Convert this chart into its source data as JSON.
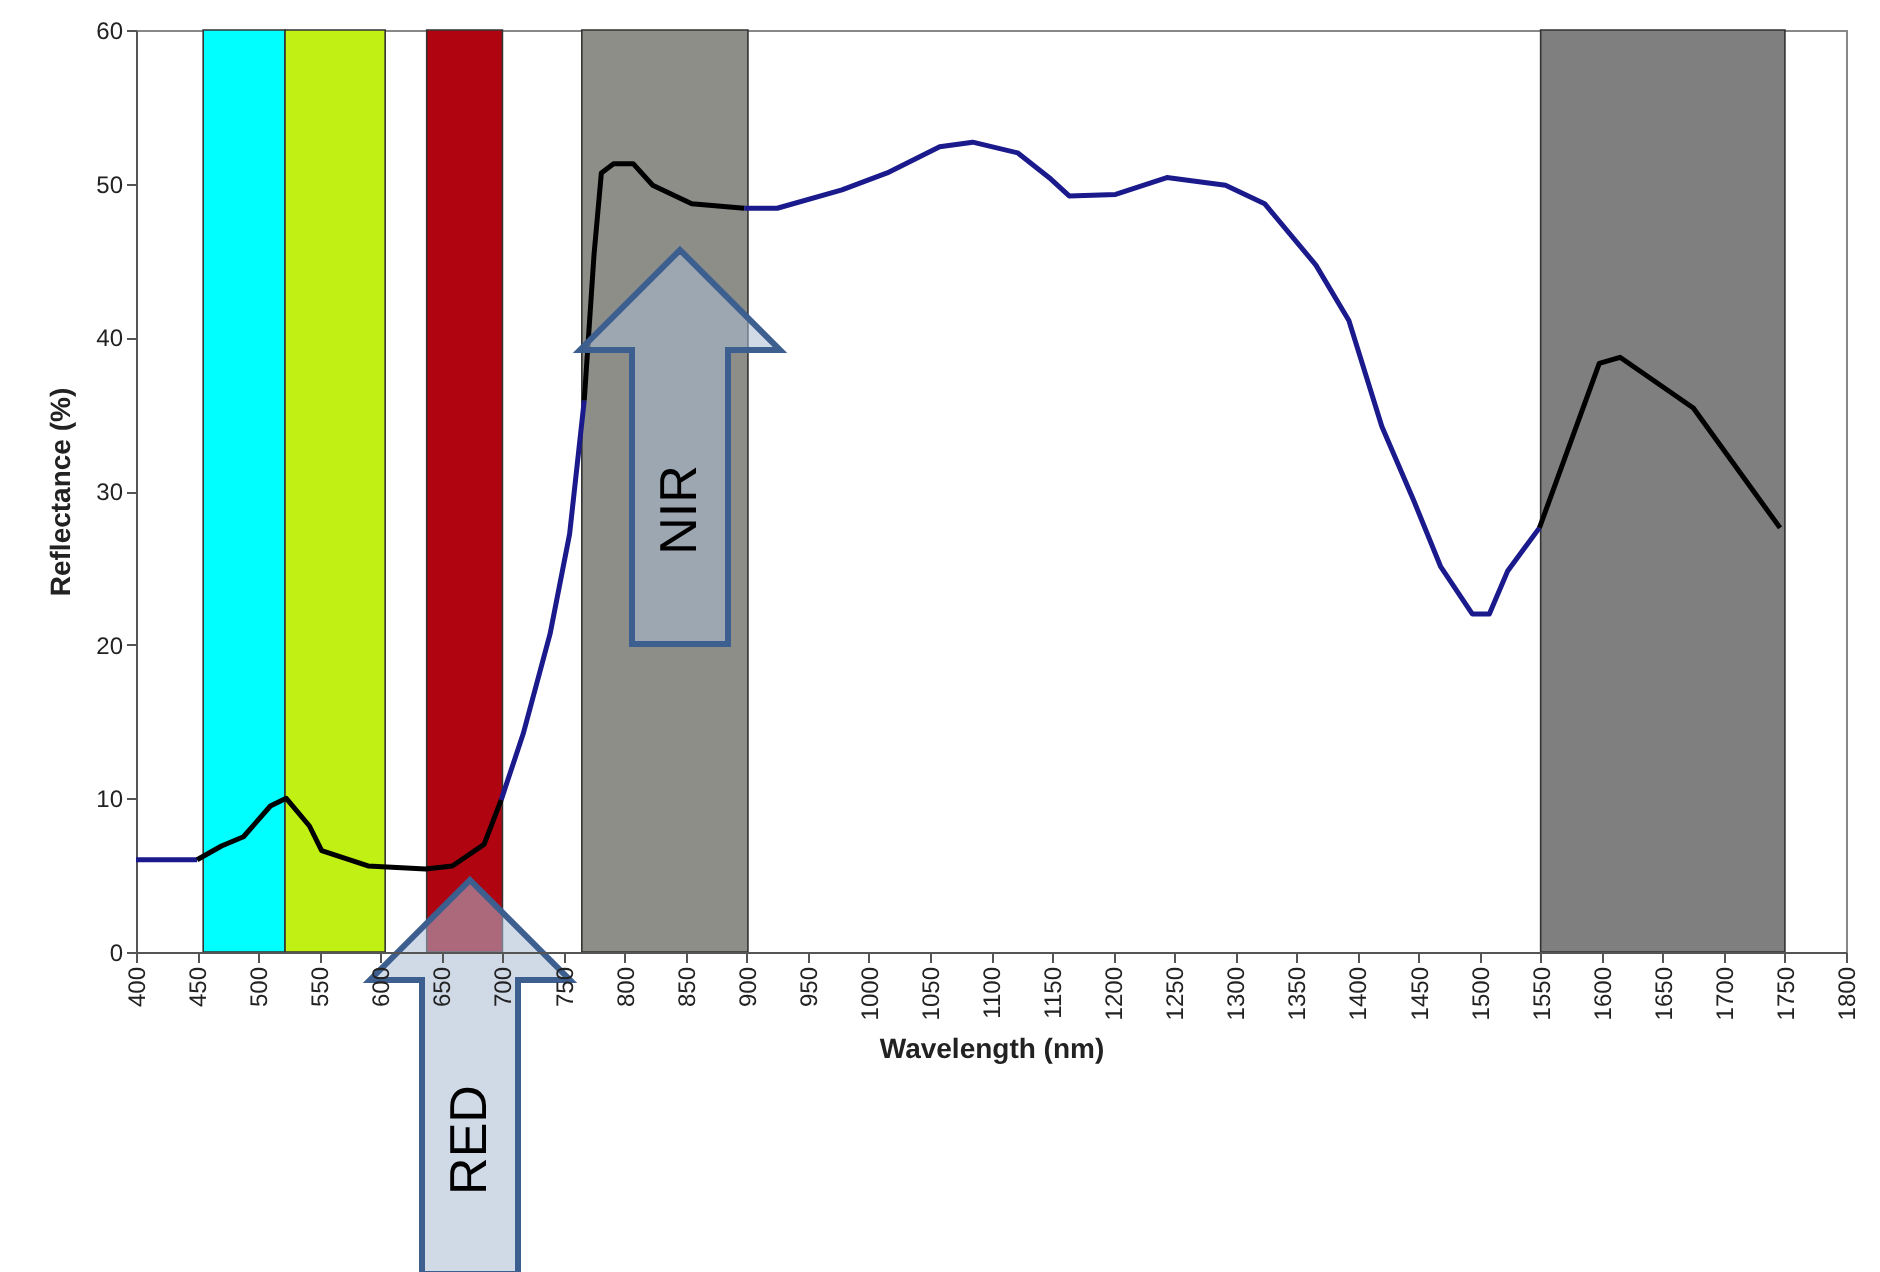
{
  "chart_data": {
    "type": "line",
    "xlabel": "Wavelength (nm)",
    "ylabel": "Reflectance (%)",
    "xlim": [
      400,
      1800
    ],
    "xticks": [
      400,
      450,
      500,
      550,
      600,
      650,
      700,
      750,
      800,
      850,
      900,
      950,
      1000,
      1050,
      1100,
      1150,
      1200,
      1250,
      1300,
      1350,
      1400,
      1450,
      1500,
      1550,
      1600,
      1650,
      1700,
      1750,
      1800
    ],
    "ylim": [
      0,
      60
    ],
    "yticks": [
      0,
      10,
      20,
      30,
      40,
      50,
      60
    ],
    "grid": false,
    "series": [
      {
        "color": "#1a1a8c",
        "x": [
          400,
          450
        ],
        "values": [
          6.0,
          6.0
        ]
      },
      {
        "color": "#000000",
        "x": [
          450,
          470,
          488,
          510,
          523,
          542,
          552,
          590,
          637,
          659,
          685,
          699
        ],
        "values": [
          6.0,
          6.9,
          7.5,
          9.5,
          10.0,
          8.2,
          6.6,
          5.6,
          5.4,
          5.6,
          7.0,
          9.9
        ]
      },
      {
        "color": "#1a1a8c",
        "x": [
          699,
          717,
          739,
          755,
          767
        ],
        "values": [
          9.9,
          14.2,
          20.7,
          27.2,
          35.9
        ]
      },
      {
        "color": "#000000",
        "x": [
          767,
          775,
          781,
          791,
          807,
          823,
          855,
          898
        ],
        "values": [
          35.9,
          45.4,
          50.7,
          51.3,
          51.3,
          49.9,
          48.7,
          48.4
        ]
      },
      {
        "color": "#1a1a8c",
        "x": [
          898,
          925,
          978,
          1015,
          1058,
          1085,
          1122,
          1149,
          1164,
          1202,
          1244,
          1292,
          1324,
          1366,
          1393,
          1420,
          1446,
          1468,
          1494,
          1508,
          1523,
          1549
        ],
        "values": [
          48.4,
          48.4,
          49.6,
          50.7,
          52.4,
          52.7,
          52.0,
          50.3,
          49.2,
          49.3,
          50.4,
          49.9,
          48.7,
          44.7,
          41.1,
          34.2,
          29.4,
          25.1,
          22.0,
          22.0,
          24.8,
          27.6
        ]
      },
      {
        "color": "#000000",
        "x": [
          1549,
          1598,
          1615,
          1675,
          1746
        ],
        "values": [
          27.6,
          38.3,
          38.7,
          35.4,
          27.6
        ]
      }
    ],
    "bands": [
      {
        "axis": "x",
        "from": 455,
        "to": 522,
        "color": "#00ffff"
      },
      {
        "axis": "x",
        "from": 522,
        "to": 604,
        "color": "#c0f014"
      },
      {
        "axis": "x",
        "from": 638,
        "to": 700,
        "color": "#b00510"
      },
      {
        "axis": "x",
        "from": 765,
        "to": 901,
        "color": "#8c8e87"
      },
      {
        "axis": "x",
        "from": 1550,
        "to": 1750,
        "color": "#7f7f7f"
      }
    ],
    "annotations": [
      "NIR",
      "RED"
    ]
  }
}
